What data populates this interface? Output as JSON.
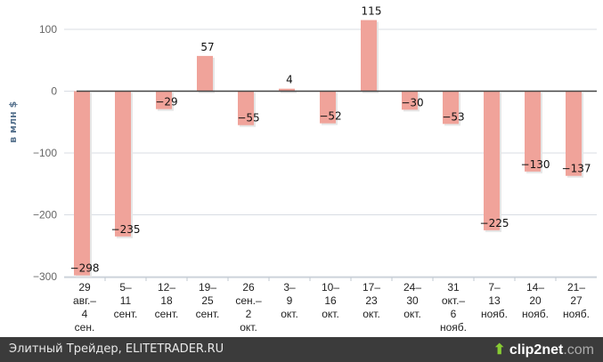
{
  "chart_data": {
    "type": "bar",
    "title": "",
    "xlabel": "",
    "ylabel": "в млн $",
    "ylim": [
      -300,
      100
    ],
    "yticks": [
      100,
      0,
      -100,
      -200,
      -300
    ],
    "ytick_labels": [
      "100",
      "0",
      "−100",
      "−200",
      "−300"
    ],
    "grid": true,
    "categories": [
      [
        "29",
        "авг.–",
        "4",
        "сен."
      ],
      [
        "5–",
        "11",
        "сент."
      ],
      [
        "12–",
        "18",
        "сент."
      ],
      [
        "19–",
        "25",
        "сент."
      ],
      [
        "26",
        "сен.–",
        "2",
        "окт."
      ],
      [
        "3–",
        "9",
        "окт."
      ],
      [
        "10–",
        "16",
        "окт."
      ],
      [
        "17–",
        "23",
        "окт."
      ],
      [
        "24–",
        "30",
        "окт."
      ],
      [
        "31",
        "окт.–",
        "6",
        "нояб."
      ],
      [
        "7–",
        "13",
        "нояб."
      ],
      [
        "14–",
        "20",
        "нояб."
      ],
      [
        "21–",
        "27",
        "нояб."
      ]
    ],
    "values": [
      -298,
      -235,
      -29,
      57,
      -55,
      4,
      -52,
      115,
      -30,
      -53,
      -225,
      -130,
      -137
    ],
    "value_labels": [
      "−298",
      "−235",
      "−29",
      "57",
      "−55",
      "4",
      "−52",
      "115",
      "−30",
      "−53",
      "−225",
      "−130",
      "−137"
    ],
    "bar_color": "#f0a39a"
  },
  "footer": {
    "source": "Элитный Трейдер, ELITETRADER.RU",
    "logo_main": "clip2net",
    "logo_domain": ".com"
  }
}
